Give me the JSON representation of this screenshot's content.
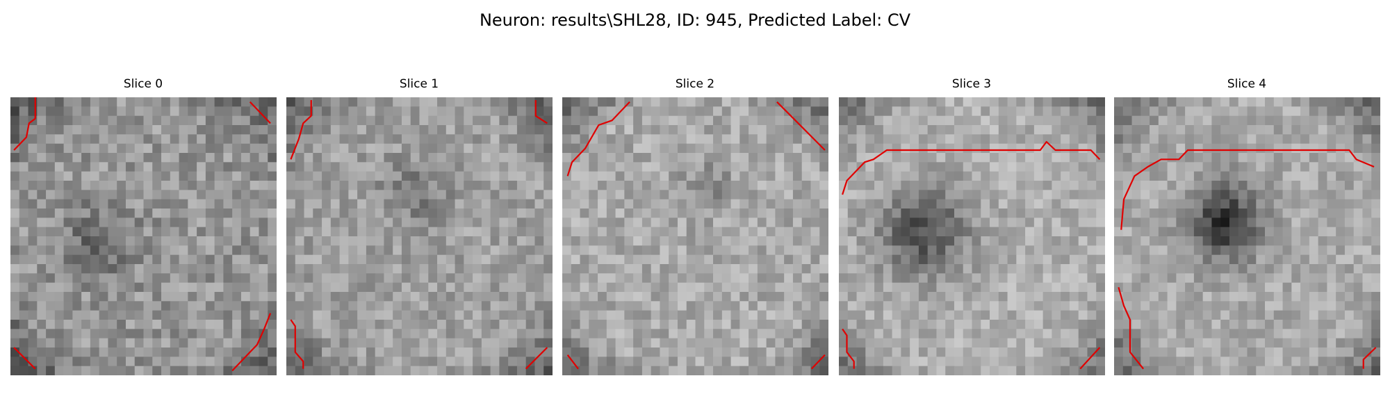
{
  "title": "Neuron: results\\SHL28, ID: 945, Predicted Label: CV",
  "slices": [
    {
      "label": "Slice 0"
    },
    {
      "label": "Slice 1"
    },
    {
      "label": "Slice 2"
    },
    {
      "label": "Slice 3"
    },
    {
      "label": "Slice 4"
    }
  ]
}
